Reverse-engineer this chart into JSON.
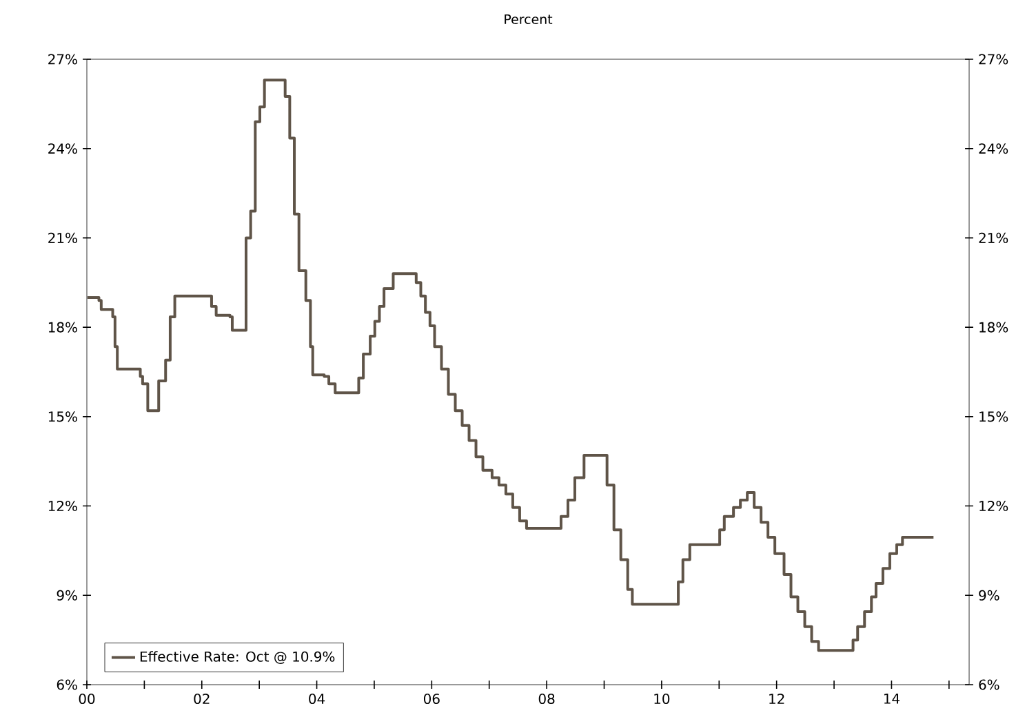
{
  "chart_data": {
    "type": "step",
    "subtitle": "Percent",
    "x": [
      2000.01,
      2000.21,
      2000.25,
      2000.45,
      2000.49,
      2000.53,
      2000.89,
      2000.93,
      2000.97,
      2001.06,
      2001.15,
      2001.25,
      2001.37,
      2001.45,
      2001.53,
      2002.09,
      2002.17,
      2002.25,
      2002.49,
      2002.53,
      2002.73,
      2002.77,
      2002.85,
      2002.93,
      2003.01,
      2003.09,
      2003.37,
      2003.45,
      2003.53,
      2003.61,
      2003.69,
      2003.81,
      2003.89,
      2003.93,
      2004.13,
      2004.21,
      2004.32,
      2004.66,
      2004.73,
      2004.81,
      2004.93,
      2005.01,
      2005.09,
      2005.17,
      2005.33,
      2005.61,
      2005.73,
      2005.81,
      2005.89,
      2005.97,
      2006.05,
      2006.17,
      2006.29,
      2006.41,
      2006.53,
      2006.65,
      2006.77,
      2006.89,
      2007.05,
      2007.17,
      2007.29,
      2007.41,
      2007.53,
      2007.65,
      2008.21,
      2008.25,
      2008.37,
      2008.49,
      2008.65,
      2008.97,
      2009.05,
      2009.17,
      2009.29,
      2009.41,
      2009.49,
      2010.25,
      2010.29,
      2010.37,
      2010.49,
      2010.97,
      2011.01,
      2011.09,
      2011.25,
      2011.37,
      2011.49,
      2011.57,
      2011.61,
      2011.73,
      2011.85,
      2011.97,
      2012.13,
      2012.25,
      2012.37,
      2012.49,
      2012.61,
      2012.73,
      2013.21,
      2013.33,
      2013.41,
      2013.53,
      2013.65,
      2013.73,
      2013.85,
      2013.97,
      2014.09,
      2014.19,
      2014.73
    ],
    "series": [
      {
        "name": "Effective Rate: Oct @ 10.9%",
        "color": "#5f5448",
        "values": [
          19.0,
          18.9,
          18.6,
          18.35,
          17.35,
          16.6,
          16.6,
          16.35,
          16.1,
          15.2,
          15.2,
          16.2,
          16.9,
          18.35,
          19.05,
          19.05,
          18.7,
          18.4,
          18.35,
          17.9,
          17.9,
          21.0,
          21.9,
          24.9,
          25.4,
          26.3,
          26.3,
          25.75,
          24.35,
          21.8,
          19.9,
          18.9,
          17.35,
          16.4,
          16.35,
          16.1,
          15.8,
          15.8,
          16.3,
          17.1,
          17.7,
          18.2,
          18.7,
          19.3,
          19.8,
          19.8,
          19.5,
          19.05,
          18.5,
          18.05,
          17.35,
          16.6,
          15.75,
          15.2,
          14.7,
          14.2,
          13.65,
          13.2,
          12.95,
          12.7,
          12.4,
          11.95,
          11.5,
          11.25,
          11.25,
          11.65,
          12.2,
          12.95,
          13.7,
          13.7,
          12.7,
          11.2,
          10.2,
          9.2,
          8.7,
          8.7,
          9.45,
          10.2,
          10.7,
          10.7,
          11.2,
          11.65,
          11.95,
          12.2,
          12.45,
          12.45,
          11.95,
          11.45,
          10.95,
          10.4,
          9.7,
          8.95,
          8.45,
          7.95,
          7.45,
          7.15,
          7.15,
          7.5,
          7.95,
          8.45,
          8.95,
          9.4,
          9.9,
          10.4,
          10.7,
          10.95,
          10.95
        ]
      }
    ],
    "xlim": [
      2000,
      2015.35
    ],
    "xticks": [
      {
        "value": 2000,
        "label": "00"
      },
      {
        "value": 2001,
        "label": null
      },
      {
        "value": 2002,
        "label": "02"
      },
      {
        "value": 2003,
        "label": null
      },
      {
        "value": 2004,
        "label": "04"
      },
      {
        "value": 2005,
        "label": null
      },
      {
        "value": 2006,
        "label": "06"
      },
      {
        "value": 2007,
        "label": null
      },
      {
        "value": 2008,
        "label": "08"
      },
      {
        "value": 2009,
        "label": null
      },
      {
        "value": 2010,
        "label": "10"
      },
      {
        "value": 2011,
        "label": null
      },
      {
        "value": 2012,
        "label": "12"
      },
      {
        "value": 2013,
        "label": null
      },
      {
        "value": 2014,
        "label": "14"
      },
      {
        "value": 2015,
        "label": null
      }
    ],
    "ylim": [
      6,
      27
    ],
    "yticks": [
      {
        "value": 6,
        "label": "6%"
      },
      {
        "value": 9,
        "label": "9%"
      },
      {
        "value": 12,
        "label": "12%"
      },
      {
        "value": 15,
        "label": "15%"
      },
      {
        "value": 18,
        "label": "18%"
      },
      {
        "value": 21,
        "label": "21%"
      },
      {
        "value": 24,
        "label": "24%"
      },
      {
        "value": 27,
        "label": "27%"
      }
    ],
    "y2lim": [
      6,
      27
    ],
    "y2ticks": [
      {
        "value": 6,
        "label": "6%"
      },
      {
        "value": 9,
        "label": "9%"
      },
      {
        "value": 12,
        "label": "12%"
      },
      {
        "value": 15,
        "label": "15%"
      },
      {
        "value": 18,
        "label": "18%"
      },
      {
        "value": 21,
        "label": "21%"
      },
      {
        "value": 24,
        "label": "24%"
      },
      {
        "value": 27,
        "label": "27%"
      }
    ],
    "legend": "bottom left",
    "grid": false
  }
}
